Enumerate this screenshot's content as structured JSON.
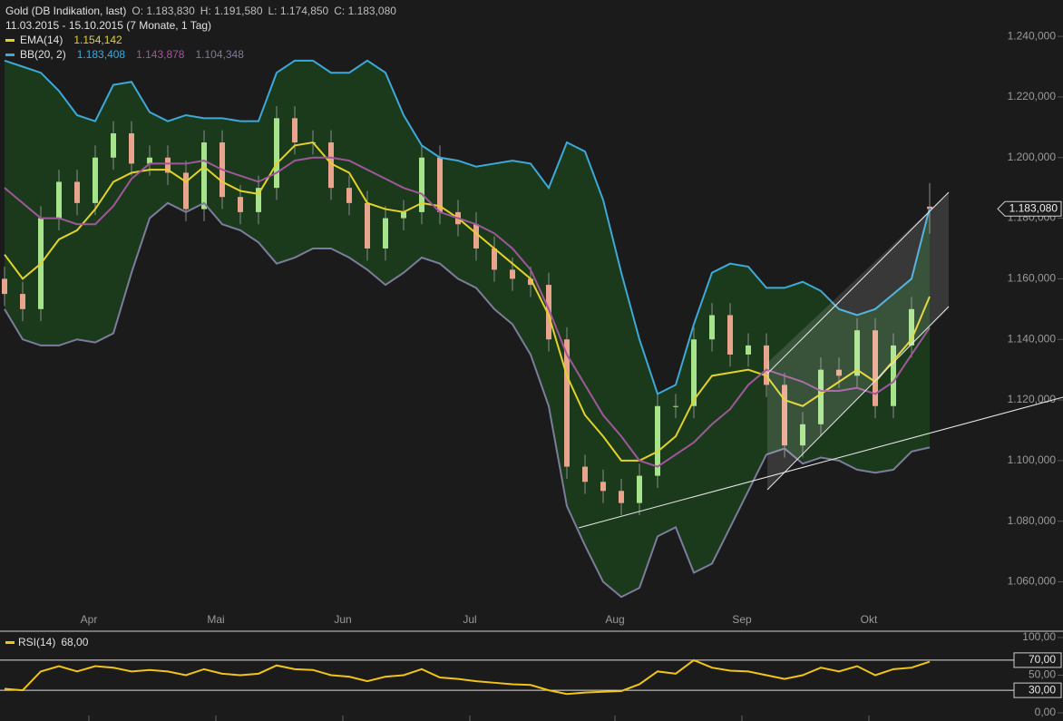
{
  "header": {
    "title": "Gold (DB Indikation, last)",
    "o": "O: 1.183,830",
    "h": "H: 1.191,580",
    "l": "L: 1.174,850",
    "c": "C: 1.183,080",
    "range": "11.03.2015 - 15.10.2015 (7 Monate, 1 Tag)"
  },
  "chart_data": [
    {
      "type": "candlestick",
      "categories": [
        null,
        null,
        null,
        null,
        null,
        "Apr",
        null,
        null,
        null,
        null,
        null,
        null,
        "Mai",
        null,
        null,
        null,
        null,
        null,
        null,
        "Jun",
        null,
        null,
        null,
        null,
        null,
        null,
        "Jul",
        null,
        null,
        null,
        null,
        null,
        null,
        null,
        "Aug",
        null,
        null,
        null,
        null,
        null,
        null,
        "Sep",
        null,
        null,
        null,
        null,
        null,
        null,
        "Okt",
        null,
        null,
        null
      ],
      "open": [
        1160,
        1155,
        1150,
        1180,
        1192,
        1185,
        1200,
        1208,
        1198,
        1200,
        1195,
        1183,
        1205,
        1187,
        1182,
        1190,
        1213,
        1205,
        1205,
        1190,
        1185,
        1170,
        1180,
        1182,
        1200,
        1182,
        1178,
        1170,
        1163,
        1160,
        1158,
        1140,
        1098,
        1093,
        1090,
        1086,
        1095,
        1118,
        1118,
        1140,
        1148,
        1135,
        1138,
        1125,
        1105,
        1112,
        1130,
        1128,
        1143,
        1118,
        1138,
        1183.83
      ],
      "high": [
        1164,
        1159,
        1184,
        1196,
        1196,
        1204,
        1212,
        1212,
        1204,
        1204,
        1199,
        1209,
        1209,
        1191,
        1194,
        1217,
        1217,
        1209,
        1209,
        1194,
        1189,
        1184,
        1186,
        1204,
        1204,
        1186,
        1182,
        1174,
        1167,
        1164,
        1162,
        1144,
        1102,
        1097,
        1094,
        1099,
        1122,
        1122,
        1144,
        1152,
        1152,
        1142,
        1142,
        1129,
        1116,
        1134,
        1134,
        1147,
        1147,
        1142,
        1154,
        1191.58
      ],
      "low": [
        1151,
        1146,
        1146,
        1176,
        1181,
        1181,
        1196,
        1194,
        1194,
        1191,
        1179,
        1179,
        1183,
        1178,
        1178,
        1186,
        1201,
        1201,
        1186,
        1181,
        1166,
        1166,
        1176,
        1178,
        1178,
        1174,
        1166,
        1159,
        1156,
        1154,
        1136,
        1094,
        1089,
        1086,
        1082,
        1082,
        1091,
        1114,
        1114,
        1136,
        1131,
        1131,
        1121,
        1101,
        1101,
        1108,
        1124,
        1124,
        1114,
        1114,
        1134,
        1174.85
      ],
      "close": [
        1155,
        1150,
        1180,
        1192,
        1185,
        1200,
        1208,
        1198,
        1200,
        1195,
        1183,
        1205,
        1187,
        1182,
        1190,
        1213,
        1205,
        1205,
        1190,
        1185,
        1170,
        1180,
        1182,
        1200,
        1182,
        1178,
        1170,
        1163,
        1160,
        1158,
        1140,
        1098,
        1093,
        1090,
        1086,
        1095,
        1118,
        1118,
        1140,
        1148,
        1135,
        1138,
        1125,
        1105,
        1112,
        1130,
        1128,
        1143,
        1118,
        1138,
        1150,
        1183.08
      ],
      "up_color": "#a6e38a",
      "down_color": "#e8a48c",
      "last_label": "1.183,080",
      "series": [
        {
          "name": "EMA(14)",
          "legend_values": [
            "1.154,142"
          ],
          "color": "#e3d22a",
          "values": [
            1168,
            1160,
            1165,
            1173,
            1176,
            1183,
            1192,
            1195,
            1196,
            1196,
            1192,
            1197,
            1192,
            1189,
            1188,
            1198,
            1204,
            1205,
            1198,
            1195,
            1185,
            1183,
            1182,
            1185,
            1184,
            1180,
            1175,
            1170,
            1165,
            1160,
            1148,
            1128,
            1115,
            1108,
            1100,
            1100,
            1103,
            1108,
            1120,
            1128,
            1129,
            1130,
            1128,
            1120,
            1118,
            1122,
            1126,
            1130,
            1126,
            1133,
            1140,
            1154.14
          ]
        },
        {
          "name": "BB(20, 2)",
          "legend_values": [
            "1.183,408",
            "1.143,878",
            "1.104,348"
          ],
          "legend_colors": [
            "#3ea8d8",
            "#a0579a",
            "#7c7c9c"
          ],
          "color": "#3ea8d8",
          "values": [
            1232,
            1230,
            1228,
            1222,
            1214,
            1212,
            1224,
            1225,
            1215,
            1212,
            1214,
            1213,
            1213,
            1212,
            1212,
            1228,
            1232,
            1232,
            1228,
            1228,
            1232,
            1228,
            1214,
            1204,
            1200,
            1199,
            1197,
            1198,
            1199,
            1198,
            1190,
            1205,
            1202,
            1186,
            1162,
            1140,
            1122,
            1125,
            1145,
            1162,
            1165,
            1164,
            1157,
            1157,
            1159,
            1156,
            1150,
            1148,
            1150,
            1155,
            1160,
            1183.41
          ]
        },
        {
          "color": "#a0579a",
          "values": [
            1190,
            1185,
            1180,
            1180,
            1178,
            1178,
            1184,
            1193,
            1198,
            1198,
            1198,
            1199,
            1196,
            1194,
            1192,
            1195,
            1199,
            1200,
            1200,
            1199,
            1196,
            1193,
            1190,
            1188,
            1182,
            1180,
            1178,
            1175,
            1170,
            1163,
            1150,
            1135,
            1125,
            1115,
            1108,
            1100,
            1098,
            1102,
            1106,
            1112,
            1117,
            1125,
            1130,
            1128,
            1126,
            1123,
            1123,
            1124,
            1122,
            1126,
            1135,
            1143.88
          ]
        },
        {
          "color": "#7c7c9c",
          "values": [
            1150,
            1140,
            1138,
            1138,
            1140,
            1139,
            1142,
            1162,
            1180,
            1185,
            1182,
            1185,
            1178,
            1176,
            1172,
            1165,
            1167,
            1170,
            1170,
            1167,
            1163,
            1158,
            1162,
            1167,
            1165,
            1160,
            1157,
            1150,
            1145,
            1135,
            1118,
            1085,
            1072,
            1060,
            1055,
            1058,
            1075,
            1078,
            1063,
            1066,
            1078,
            1090,
            1102,
            1104,
            1099,
            1101,
            1100,
            1097,
            1096,
            1097,
            1103,
            1104.35
          ]
        }
      ],
      "band_fill": "#1b3a1c",
      "ylim": [
        1044,
        1252
      ],
      "yticks": [
        {
          "value": 1060,
          "label": "1.060,000"
        },
        {
          "value": 1080,
          "label": "1.080,000"
        },
        {
          "value": 1100,
          "label": "1.100,000"
        },
        {
          "value": 1120,
          "label": "1.120,000"
        },
        {
          "value": 1140,
          "label": "1.140,000"
        },
        {
          "value": 1160,
          "label": "1.160,000"
        },
        {
          "value": 1180,
          "label": "1.180,000"
        },
        {
          "value": 1200,
          "label": "1.200,000"
        },
        {
          "value": 1220,
          "label": "1.220,000"
        },
        {
          "value": 1240,
          "label": "1.240,000"
        }
      ]
    },
    {
      "type": "line",
      "series": [
        {
          "name": "RSI(14)",
          "legend_values": [
            "68,00"
          ],
          "color": "#f0c419",
          "values": [
            32,
            30,
            55,
            62,
            55,
            62,
            60,
            55,
            57,
            55,
            50,
            58,
            52,
            50,
            52,
            63,
            58,
            57,
            50,
            48,
            42,
            48,
            50,
            58,
            47,
            45,
            42,
            40,
            38,
            37,
            30,
            25,
            27,
            28,
            29,
            38,
            55,
            52,
            70,
            60,
            56,
            55,
            50,
            45,
            50,
            60,
            55,
            62,
            50,
            58,
            60,
            68
          ]
        }
      ],
      "ylim": [
        -10.8,
        107.2
      ],
      "yticks": [
        {
          "value": 0,
          "label": "0,00"
        },
        {
          "value": 30,
          "label": "30,00",
          "line": true
        },
        {
          "value": 50,
          "label": "50,00"
        },
        {
          "value": 70,
          "label": "70,00",
          "line": true
        },
        {
          "value": 100,
          "label": "100,00"
        }
      ]
    }
  ]
}
